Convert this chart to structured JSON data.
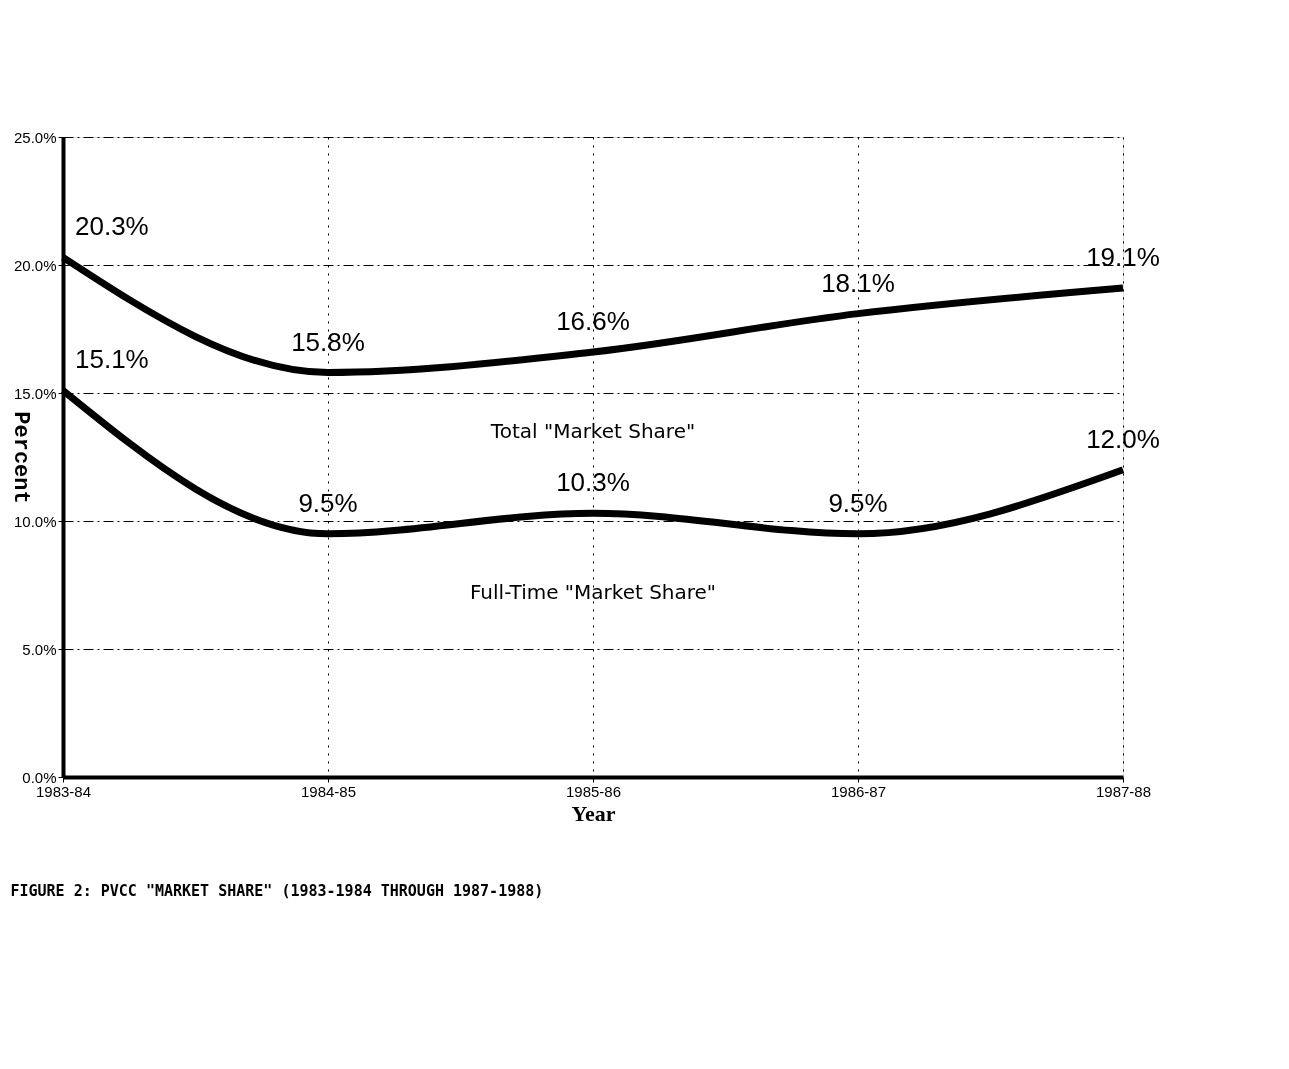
{
  "chart_data": {
    "type": "line",
    "categories": [
      "1983-84",
      "1984-85",
      "1985-86",
      "1986-87",
      "1987-88"
    ],
    "series": [
      {
        "name": "Total \"Market Share\"",
        "color": "#000000",
        "values": [
          20.3,
          15.8,
          16.6,
          18.1,
          19.1
        ],
        "value_labels": [
          "20.3%",
          "15.8%",
          "16.6%",
          "18.1%",
          "19.1%"
        ]
      },
      {
        "name": "Full-Time \"Market Share\"",
        "color": "#000000",
        "values": [
          15.1,
          9.5,
          10.3,
          9.5,
          12.0
        ],
        "value_labels": [
          "15.1%",
          "9.5%",
          "10.3%",
          "9.5%",
          "12.0%"
        ]
      }
    ],
    "xlabel": "Year",
    "ylabel": "Percent",
    "ylim": [
      0,
      25
    ],
    "yticks": [
      {
        "value": 0,
        "label": "0.0%"
      },
      {
        "value": 5,
        "label": "5.0%"
      },
      {
        "value": 10,
        "label": "10.0%"
      },
      {
        "value": 15,
        "label": "15.0%"
      },
      {
        "value": 20,
        "label": "20.0%"
      },
      {
        "value": 25,
        "label": "25.0%"
      }
    ],
    "grid": true,
    "legend": false,
    "marker": "none",
    "line_style": "solid",
    "annotations": [
      "FIGURE 2:  PVCC \"MARKET SHARE\" (1983-1984 THROUGH 1987-1988)"
    ]
  }
}
